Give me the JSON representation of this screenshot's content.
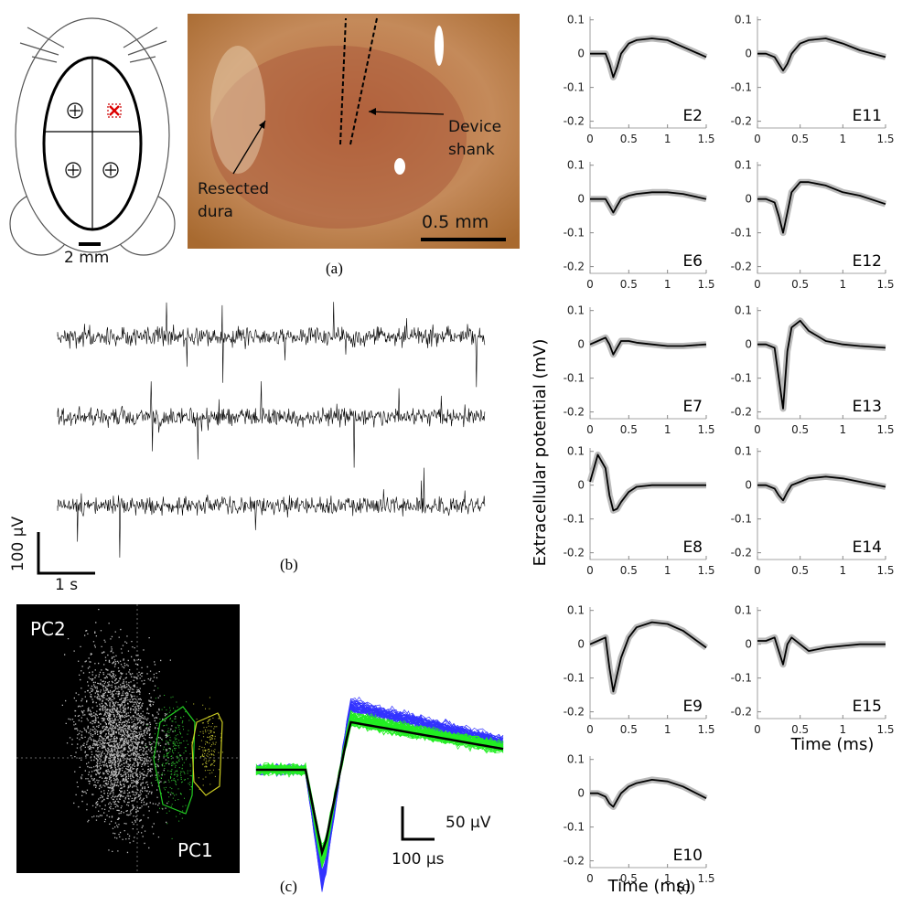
{
  "panel_a": {
    "scale_schematic": "2 mm",
    "label_dura": "Resected dura",
    "label_shank": "Device shank",
    "scale_photo": "0.5 mm",
    "caption": "(a)"
  },
  "panel_b": {
    "scale_y": "100 µV",
    "scale_x": "1 s",
    "caption": "(b)"
  },
  "panel_c": {
    "pc_y": "PC2",
    "pc_x": "PC1",
    "scale_y": "50 µV",
    "scale_x": "100 µs",
    "caption": "(c)"
  },
  "panel_d": {
    "y_label": "Extracellular potential (mV)",
    "x_label_left": "Time (ms)",
    "x_label_right": "Time (ms)",
    "caption": "(d)"
  },
  "chart_data": [
    {
      "type": "line",
      "title": "E2",
      "color": "#000000",
      "x": [
        0,
        0.1,
        0.2,
        0.25,
        0.3,
        0.35,
        0.4,
        0.5,
        0.6,
        0.8,
        1.0,
        1.2,
        1.5
      ],
      "values": [
        0,
        0,
        0,
        -0.03,
        -0.07,
        -0.04,
        0,
        0.03,
        0.04,
        0.045,
        0.04,
        0.02,
        -0.01
      ],
      "xlim": [
        0,
        1.5
      ],
      "ylim": [
        -0.22,
        0.11
      ],
      "xticks": [
        0,
        0.5,
        1,
        1.5
      ],
      "yticks": [
        0.1,
        0,
        -0.1,
        -0.2
      ]
    },
    {
      "type": "line",
      "title": "E6",
      "color": "#000000",
      "x": [
        0,
        0.1,
        0.2,
        0.25,
        0.3,
        0.35,
        0.4,
        0.5,
        0.6,
        0.8,
        1.0,
        1.2,
        1.5
      ],
      "values": [
        0,
        0,
        0,
        -0.02,
        -0.04,
        -0.02,
        0,
        0.01,
        0.015,
        0.02,
        0.02,
        0.015,
        0
      ],
      "xlim": [
        0,
        1.5
      ],
      "ylim": [
        -0.22,
        0.11
      ],
      "xticks": [
        0,
        0.5,
        1,
        1.5
      ],
      "yticks": [
        0.1,
        0,
        -0.1,
        -0.2
      ]
    },
    {
      "type": "line",
      "title": "E7",
      "color": "#000000",
      "x": [
        0,
        0.1,
        0.2,
        0.25,
        0.3,
        0.35,
        0.4,
        0.5,
        0.6,
        0.8,
        1.0,
        1.2,
        1.5
      ],
      "values": [
        0,
        0.01,
        0.02,
        0,
        -0.03,
        -0.01,
        0.01,
        0.01,
        0.005,
        0,
        -0.005,
        -0.005,
        0
      ],
      "xlim": [
        0,
        1.5
      ],
      "ylim": [
        -0.22,
        0.11
      ],
      "xticks": [
        0,
        0.5,
        1,
        1.5
      ],
      "yticks": [
        0.1,
        0,
        -0.1,
        -0.2
      ]
    },
    {
      "type": "line",
      "title": "E8",
      "color": "#000000",
      "x": [
        0,
        0.1,
        0.2,
        0.25,
        0.3,
        0.35,
        0.4,
        0.5,
        0.6,
        0.8,
        1.0,
        1.2,
        1.5
      ],
      "values": [
        0.01,
        0.09,
        0.05,
        -0.03,
        -0.075,
        -0.07,
        -0.05,
        -0.02,
        -0.005,
        0,
        0,
        0,
        0
      ],
      "xlim": [
        0,
        1.5
      ],
      "ylim": [
        -0.22,
        0.11
      ],
      "xticks": [
        0,
        0.5,
        1,
        1.5
      ],
      "yticks": [
        0.1,
        0,
        -0.1,
        -0.2
      ]
    },
    {
      "type": "line",
      "title": "E9",
      "color": "#000000",
      "x": [
        0,
        0.1,
        0.2,
        0.25,
        0.3,
        0.35,
        0.4,
        0.5,
        0.6,
        0.8,
        1.0,
        1.2,
        1.5
      ],
      "values": [
        0,
        0.01,
        0.02,
        -0.07,
        -0.14,
        -0.09,
        -0.04,
        0.02,
        0.05,
        0.065,
        0.06,
        0.04,
        -0.01
      ],
      "xlim": [
        0,
        1.5
      ],
      "ylim": [
        -0.22,
        0.11
      ],
      "xticks": [
        0,
        0.5,
        1,
        1.5
      ],
      "yticks": [
        0.1,
        0,
        -0.1,
        -0.2
      ]
    },
    {
      "type": "line",
      "title": "E10",
      "color": "#000000",
      "x": [
        0,
        0.1,
        0.2,
        0.25,
        0.3,
        0.35,
        0.4,
        0.5,
        0.6,
        0.8,
        1.0,
        1.2,
        1.5
      ],
      "values": [
        0,
        0,
        -0.01,
        -0.03,
        -0.04,
        -0.02,
        0,
        0.02,
        0.03,
        0.04,
        0.035,
        0.02,
        -0.015
      ],
      "xlim": [
        0,
        1.5
      ],
      "ylim": [
        -0.22,
        0.11
      ],
      "xticks": [
        0,
        0.5,
        1,
        1.5
      ],
      "yticks": [
        0.1,
        0,
        -0.1,
        -0.2
      ]
    },
    {
      "type": "line",
      "title": "E11",
      "color": "#000000",
      "x": [
        0,
        0.1,
        0.2,
        0.25,
        0.3,
        0.35,
        0.4,
        0.5,
        0.6,
        0.8,
        1.0,
        1.2,
        1.5
      ],
      "values": [
        0,
        0,
        -0.01,
        -0.03,
        -0.05,
        -0.03,
        0,
        0.03,
        0.04,
        0.045,
        0.03,
        0.01,
        -0.01
      ],
      "xlim": [
        0,
        1.5
      ],
      "ylim": [
        -0.22,
        0.11
      ],
      "xticks": [
        0,
        0.5,
        1,
        1.5
      ],
      "yticks": [
        0.1,
        0,
        -0.1,
        -0.2
      ]
    },
    {
      "type": "line",
      "title": "E12",
      "color": "#000000",
      "x": [
        0,
        0.1,
        0.2,
        0.25,
        0.3,
        0.35,
        0.4,
        0.5,
        0.6,
        0.8,
        1.0,
        1.2,
        1.5
      ],
      "values": [
        0,
        0,
        -0.01,
        -0.05,
        -0.1,
        -0.04,
        0.02,
        0.05,
        0.05,
        0.04,
        0.02,
        0.01,
        -0.015
      ],
      "xlim": [
        0,
        1.5
      ],
      "ylim": [
        -0.22,
        0.11
      ],
      "xticks": [
        0,
        0.5,
        1,
        1.5
      ],
      "yticks": [
        0.1,
        0,
        -0.1,
        -0.2
      ]
    },
    {
      "type": "line",
      "title": "E13",
      "color": "#000000",
      "x": [
        0,
        0.1,
        0.2,
        0.25,
        0.3,
        0.35,
        0.4,
        0.5,
        0.6,
        0.8,
        1.0,
        1.2,
        1.5
      ],
      "values": [
        0,
        0,
        -0.01,
        -0.1,
        -0.19,
        -0.02,
        0.05,
        0.07,
        0.04,
        0.01,
        0,
        -0.005,
        -0.01
      ],
      "xlim": [
        0,
        1.5
      ],
      "ylim": [
        -0.22,
        0.11
      ],
      "xticks": [
        0,
        0.5,
        1,
        1.5
      ],
      "yticks": [
        0.1,
        0,
        -0.1,
        -0.2
      ]
    },
    {
      "type": "line",
      "title": "E14",
      "color": "#000000",
      "x": [
        0,
        0.1,
        0.2,
        0.25,
        0.3,
        0.35,
        0.4,
        0.5,
        0.6,
        0.8,
        1.0,
        1.2,
        1.5
      ],
      "values": [
        0,
        0,
        -0.01,
        -0.03,
        -0.045,
        -0.02,
        0,
        0.01,
        0.02,
        0.025,
        0.02,
        0.01,
        -0.005
      ],
      "xlim": [
        0,
        1.5
      ],
      "ylim": [
        -0.22,
        0.11
      ],
      "xticks": [
        0,
        0.5,
        1,
        1.5
      ],
      "yticks": [
        0.1,
        0,
        -0.1,
        -0.2
      ]
    },
    {
      "type": "line",
      "title": "E15",
      "color": "#000000",
      "x": [
        0,
        0.1,
        0.2,
        0.25,
        0.3,
        0.35,
        0.4,
        0.5,
        0.6,
        0.8,
        1.0,
        1.2,
        1.5
      ],
      "values": [
        0.01,
        0.01,
        0.02,
        -0.02,
        -0.06,
        0,
        0.02,
        0,
        -0.02,
        -0.01,
        -0.005,
        0,
        0
      ],
      "xlim": [
        0,
        1.5
      ],
      "ylim": [
        -0.22,
        0.11
      ],
      "xticks": [
        0,
        0.5,
        1,
        1.5
      ],
      "yticks": [
        0.1,
        0,
        -0.1,
        -0.2
      ]
    }
  ]
}
